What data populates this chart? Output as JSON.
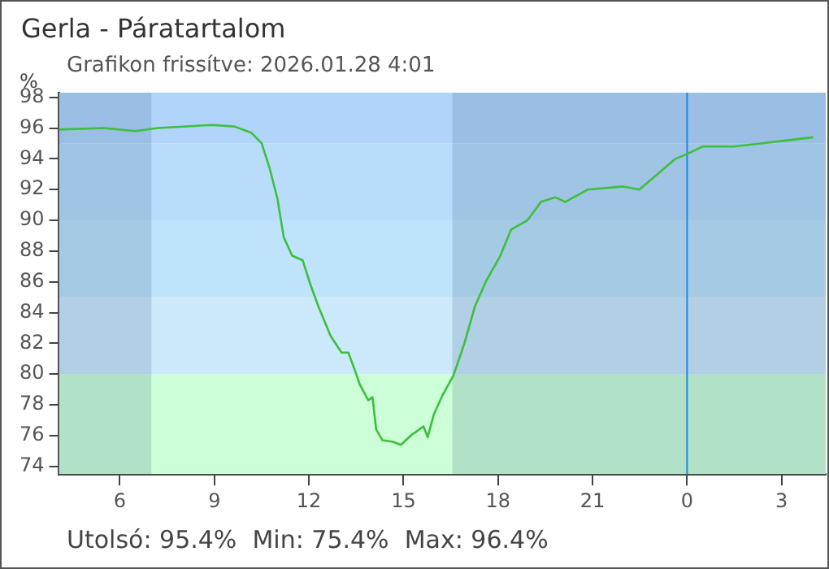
{
  "chart_data": {
    "type": "line",
    "title": "Gerla - Páratartalom",
    "subtitle": "Grafikon frissítve: 2026.01.28 4:01",
    "ylabel": "%",
    "annotations": [
      "Utolsó: 95.4%  Min: 75.4%  Max: 96.4%"
    ],
    "xlim": [
      "2026-01-27T04:04",
      "2026-01-28T04:24"
    ],
    "xticks": [
      {
        "value": "2026-01-27T06:00",
        "label": "6"
      },
      {
        "value": "2026-01-27T09:00",
        "label": "9"
      },
      {
        "value": "2026-01-27T12:00",
        "label": "12"
      },
      {
        "value": "2026-01-27T15:00",
        "label": "15"
      },
      {
        "value": "2026-01-27T18:00",
        "label": "18"
      },
      {
        "value": "2026-01-27T21:00",
        "label": "21"
      },
      {
        "value": "2026-01-28T00:00",
        "label": "0"
      },
      {
        "value": "2026-01-28T03:00",
        "label": "3"
      }
    ],
    "ylim": [
      73.5,
      98.3
    ],
    "yticks": [
      74,
      76,
      78,
      80,
      82,
      84,
      86,
      88,
      90,
      92,
      94,
      96,
      98
    ],
    "grid": false,
    "legend": false,
    "marker": "none",
    "line_style": "solid",
    "ref_lines": [
      {
        "axis": "x",
        "value": "2026-01-28T00:00",
        "color": "#1e88e5"
      }
    ],
    "bands": [
      {
        "axis": "y",
        "from": 95,
        "to": 98.3,
        "color": "#b0d4fa"
      },
      {
        "axis": "y",
        "from": 90,
        "to": 95,
        "color": "#b8dcfa"
      },
      {
        "axis": "y",
        "from": 85,
        "to": 90,
        "color": "#bee3fb"
      },
      {
        "axis": "y",
        "from": 80,
        "to": 85,
        "color": "#cce9fc"
      },
      {
        "axis": "y",
        "from": 73.5,
        "to": 80,
        "color": "#ccffd8"
      },
      {
        "axis": "x",
        "from": "2026-01-27T04:04",
        "to": "2026-01-27T07:00",
        "color": "#3a5f80"
      },
      {
        "axis": "x",
        "from": "2026-01-27T16:33",
        "to": "2026-01-28T04:24",
        "color": "#3a5f80"
      }
    ],
    "series": [
      {
        "color": "#3dbf3d",
        "x": [
          "2026-01-27T04:04",
          "2026-01-27T05:28",
          "2026-01-27T06:30",
          "2026-01-27T07:12",
          "2026-01-27T08:56",
          "2026-01-27T09:38",
          "2026-01-27T10:10",
          "2026-01-27T10:30",
          "2026-01-27T10:45",
          "2026-01-27T11:00",
          "2026-01-27T11:12",
          "2026-01-27T11:28",
          "2026-01-27T11:48",
          "2026-01-27T12:03",
          "2026-01-27T12:18",
          "2026-01-27T12:41",
          "2026-01-27T13:02",
          "2026-01-27T13:15",
          "2026-01-27T13:28",
          "2026-01-27T13:37",
          "2026-01-27T13:53",
          "2026-01-27T14:01",
          "2026-01-27T14:08",
          "2026-01-27T14:20",
          "2026-01-27T14:40",
          "2026-01-27T14:55",
          "2026-01-27T15:17",
          "2026-01-27T15:22",
          "2026-01-27T15:38",
          "2026-01-27T15:46",
          "2026-01-27T15:58",
          "2026-01-27T16:14",
          "2026-01-27T16:35",
          "2026-01-27T16:56",
          "2026-01-27T17:16",
          "2026-01-27T17:38",
          "2026-01-27T18:03",
          "2026-01-27T18:25",
          "2026-01-27T18:56",
          "2026-01-27T19:22",
          "2026-01-27T19:49",
          "2026-01-27T20:08",
          "2026-01-27T20:51",
          "2026-01-27T21:58",
          "2026-01-27T22:29",
          "2026-01-27T23:00",
          "2026-01-27T23:38",
          "2026-01-27T23:59",
          "2026-01-28T00:30",
          "2026-01-28T01:28",
          "2026-01-28T02:20",
          "2026-01-28T03:11",
          "2026-01-28T04:00"
        ],
        "values": [
          95.9,
          96.0,
          95.8,
          96.0,
          96.2,
          96.1,
          95.7,
          95.0,
          93.4,
          91.4,
          88.9,
          87.7,
          87.4,
          85.8,
          84.4,
          82.5,
          81.4,
          81.4,
          80.2,
          79.3,
          78.3,
          78.5,
          76.4,
          75.7,
          75.6,
          75.4,
          76.1,
          76.2,
          76.6,
          75.9,
          77.4,
          78.6,
          79.9,
          82.0,
          84.4,
          86.1,
          87.6,
          89.4,
          90.0,
          91.2,
          91.5,
          91.2,
          92.0,
          92.2,
          92.0,
          92.9,
          94.0,
          94.3,
          94.8,
          94.8,
          95.0,
          95.2,
          95.4
        ]
      }
    ]
  }
}
